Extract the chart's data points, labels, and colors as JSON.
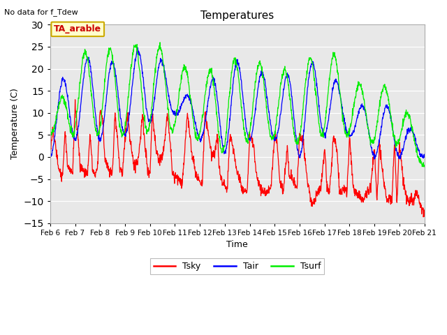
{
  "title": "Temperatures",
  "xlabel": "Time",
  "ylabel": "Temperature (C)",
  "note": "No data for f_Tdew",
  "station_label": "TA_arable",
  "ylim": [
    -15,
    30
  ],
  "yticks": [
    -15,
    -10,
    -5,
    0,
    5,
    10,
    15,
    20,
    25,
    30
  ],
  "xtick_labels": [
    "Feb 6",
    "Feb 7",
    "Feb 8",
    "Feb 9",
    "Feb 10",
    "Feb 11",
    "Feb 12",
    "Feb 13",
    "Feb 14",
    "Feb 15",
    "Feb 16",
    "Feb 17",
    "Feb 18",
    "Feb 19",
    "Feb 20",
    "Feb 21"
  ],
  "line_colors": {
    "Tsky": "#ff0000",
    "Tair": "#0000ff",
    "Tsurf": "#00ee00"
  },
  "line_width": 0.9,
  "legend_colors": {
    "Tsky": "#ff0000",
    "Tair": "#0000ff",
    "Tsurf": "#00ee00"
  },
  "station_box_facecolor": "#ffffcc",
  "station_box_edgecolor": "#ccaa00",
  "station_text_color": "#cc0000",
  "fig_facecolor": "#ffffff",
  "ax_facecolor": "#e8e8e8",
  "n_points": 1500
}
